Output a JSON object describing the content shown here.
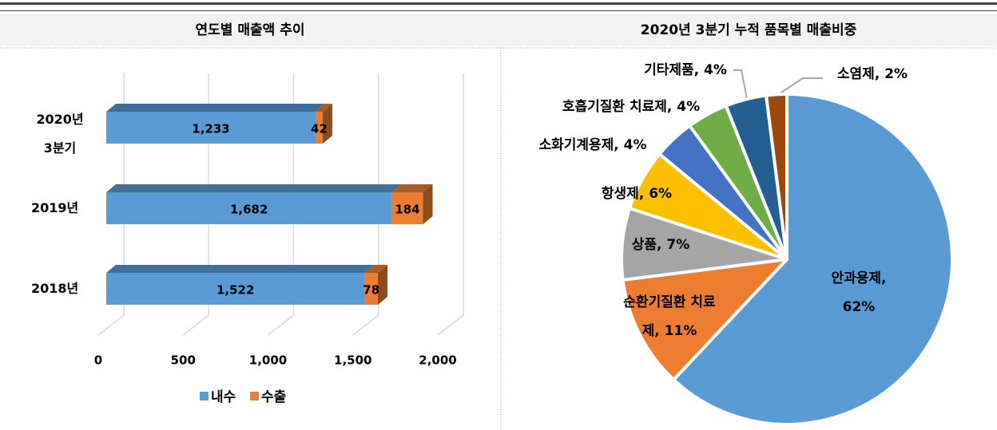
{
  "chart_data": [
    {
      "type": "bar",
      "orientation": "horizontal",
      "stacked": true,
      "title": "연도별 매출액 추이",
      "categories": [
        "2020년 3분기",
        "2019년",
        "2018년"
      ],
      "series": [
        {
          "name": "내수",
          "color": "#5b9bd5",
          "values": [
            1233,
            1682,
            1522
          ],
          "value_labels": [
            "1,233",
            "1,682",
            "1,522"
          ]
        },
        {
          "name": "수출",
          "color": "#ed7d31",
          "values": [
            42,
            184,
            78
          ]
        }
      ],
      "xlim": [
        0,
        2000
      ],
      "xticks": [
        0,
        500,
        {
          "value": 1000,
          "label": "1,000"
        },
        {
          "value": 1500,
          "label": "1,500"
        },
        {
          "value": 2000,
          "label": "2,000"
        }
      ],
      "grid": true,
      "legend": "bottom"
    },
    {
      "type": "pie",
      "title": "2020년 3분기 누적 품목별 매출비중",
      "values": [
        62,
        11,
        7,
        6,
        4,
        4,
        4,
        2
      ],
      "colors": [
        "#5b9bd5",
        "#ed7d31",
        "#a5a5a5",
        "#ffc000",
        "#4472c4",
        "#70ad47",
        "#255e91",
        "#9e480e"
      ],
      "value_labels": [
        "안과용제, 62%",
        "순환기질환 치료제, 11%",
        "상품, 7%",
        "항생제, 6%",
        "소화기계용제, 4%",
        "호흡기질환 치료제, 4%",
        "기타제품, 4%",
        "소염제, 2%"
      ]
    }
  ]
}
